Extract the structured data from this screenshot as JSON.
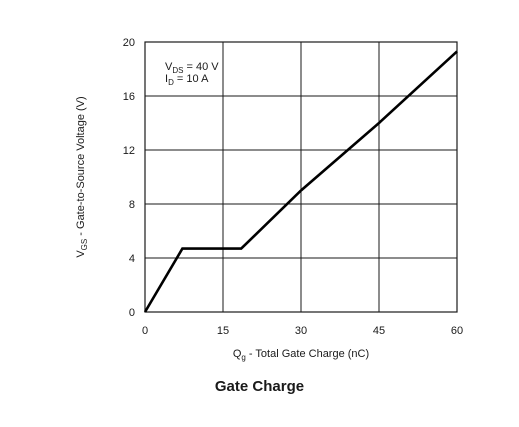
{
  "chart_data": {
    "type": "line",
    "title": "Gate Charge",
    "xlabel_main": "Q",
    "xlabel_sub": "g",
    "xlabel_rest": " - Total Gate Charge (nC)",
    "ylabel_main": "V",
    "ylabel_sub": "GS",
    "ylabel_rest": "  - Gate-to-Source Voltage (V)",
    "xlim": [
      0,
      60
    ],
    "ylim": [
      0,
      20
    ],
    "x_ticks": [
      0,
      15,
      30,
      45,
      60
    ],
    "y_ticks": [
      0,
      4,
      8,
      12,
      16,
      20
    ],
    "grid": true,
    "annotations": [
      {
        "main": "V",
        "sub": "DS",
        "rest": " = 40 V"
      },
      {
        "main": "I",
        "sub": "D",
        "rest": " = 10 A"
      }
    ],
    "series": [
      {
        "x": [
          0,
          7.2,
          18.5,
          30,
          45,
          60
        ],
        "y": [
          0,
          4.7,
          4.7,
          9.0,
          14.0,
          19.3
        ]
      }
    ]
  }
}
